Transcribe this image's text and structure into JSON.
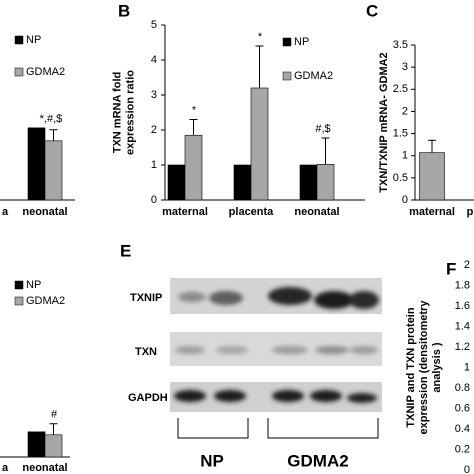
{
  "chart_data": [
    {
      "type": "bar",
      "categories": [
        "a",
        "neonatal"
      ],
      "ylim": [
        0,
        5
      ],
      "series": [
        {
          "name": "NP",
          "color": "#000000",
          "values": [
            null,
            1.95
          ]
        },
        {
          "name": "GDMA2",
          "color": "#a6a6a6",
          "values": [
            null,
            1.6
          ],
          "errors": [
            null,
            0.3
          ]
        }
      ],
      "annotations": [
        null,
        "*,#,$"
      ]
    },
    {
      "type": "bar",
      "panel": "B",
      "ylabel": [
        "TXN  mRNA fold",
        "expression ratio"
      ],
      "categories": [
        "maternal",
        "placenta",
        "neonatal"
      ],
      "ylim": [
        0,
        5
      ],
      "yticks": [
        0,
        1,
        2,
        3,
        4,
        5
      ],
      "series": [
        {
          "name": "NP",
          "color": "#000000",
          "values": [
            1,
            1,
            1
          ]
        },
        {
          "name": "GDMA2",
          "color": "#a6a6a6",
          "values": [
            1.85,
            3.2,
            1.02
          ],
          "errors": [
            0.45,
            1.2,
            0.75
          ]
        }
      ],
      "annotations": [
        "*",
        "*",
        "#,$"
      ]
    },
    {
      "type": "bar",
      "panel": "C",
      "ylabel": [
        "TXN/TXNIP mRNA- GDMA2"
      ],
      "categories": [
        "maternal",
        "p"
      ],
      "ylim": [
        0,
        3.5
      ],
      "yticks": [
        0,
        0.5,
        1,
        1.5,
        2,
        2.5,
        3,
        3.5
      ],
      "series": [
        {
          "color": "#a6a6a6",
          "values": [
            1.07,
            null
          ],
          "errors": [
            0.28,
            null
          ]
        }
      ]
    },
    {
      "type": "bar",
      "categories": [
        "a",
        "neonatal"
      ],
      "ylim": [
        0,
        5
      ],
      "series": [
        {
          "name": "NP",
          "color": "#000000",
          "values": [
            null,
            0.68
          ]
        },
        {
          "name": "GDMA2",
          "color": "#a6a6a6",
          "values": [
            null,
            0.6
          ],
          "errors": [
            null,
            0.3
          ]
        }
      ],
      "annotations": [
        null,
        "#"
      ]
    },
    {
      "type": "bar",
      "panel": "F",
      "ylabel": [
        "TXNIP and TXN protein",
        "expression (densitometry",
        "analysis )"
      ],
      "categories": [],
      "ylim": [
        0,
        2
      ],
      "yticks": [
        0,
        0.2,
        0.4,
        0.6,
        0.8,
        1,
        1.2,
        1.4,
        1.6,
        1.8,
        2
      ],
      "series": []
    }
  ],
  "blot": {
    "panel": "E",
    "rows": [
      "TXNIP",
      "TXN",
      "GAPDH"
    ],
    "groups": [
      "NP",
      "GDMA2"
    ]
  }
}
